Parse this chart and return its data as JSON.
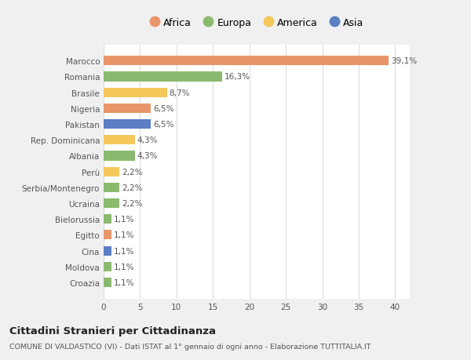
{
  "categories": [
    "Croazia",
    "Moldova",
    "Cina",
    "Egitto",
    "Bielorussia",
    "Ucraina",
    "Serbia/Montenegro",
    "Perù",
    "Albania",
    "Rep. Dominicana",
    "Pakistan",
    "Nigeria",
    "Brasile",
    "Romania",
    "Marocco"
  ],
  "values": [
    1.1,
    1.1,
    1.1,
    1.1,
    1.1,
    2.2,
    2.2,
    2.2,
    4.3,
    4.3,
    6.5,
    6.5,
    8.7,
    16.3,
    39.1
  ],
  "labels": [
    "1,1%",
    "1,1%",
    "1,1%",
    "1,1%",
    "1,1%",
    "2,2%",
    "2,2%",
    "2,2%",
    "4,3%",
    "4,3%",
    "6,5%",
    "6,5%",
    "8,7%",
    "16,3%",
    "39,1%"
  ],
  "colors": [
    "#8aba6e",
    "#8aba6e",
    "#5b7ec4",
    "#e8956a",
    "#8aba6e",
    "#8aba6e",
    "#8aba6e",
    "#f5c85c",
    "#8aba6e",
    "#f5c85c",
    "#5b7ec4",
    "#e8956a",
    "#f5c85c",
    "#8aba6e",
    "#e8956a"
  ],
  "continent_colors": {
    "Africa": "#e8956a",
    "Europa": "#8aba6e",
    "America": "#f5c85c",
    "Asia": "#5b7ec4"
  },
  "legend_labels": [
    "Africa",
    "Europa",
    "America",
    "Asia"
  ],
  "xlim": [
    0,
    42
  ],
  "xticks": [
    0,
    5,
    10,
    15,
    20,
    25,
    30,
    35,
    40
  ],
  "title": "Cittadini Stranieri per Cittadinanza",
  "subtitle": "COMUNE DI VALDASTICO (VI) - Dati ISTAT al 1° gennaio di ogni anno - Elaborazione TUTTITALIA.IT",
  "bg_color": "#f0f0f0",
  "bar_bg_color": "#ffffff",
  "grid_color": "#dddddd",
  "label_fontsize": 7.5,
  "tick_fontsize": 7.5,
  "bar_height": 0.6
}
